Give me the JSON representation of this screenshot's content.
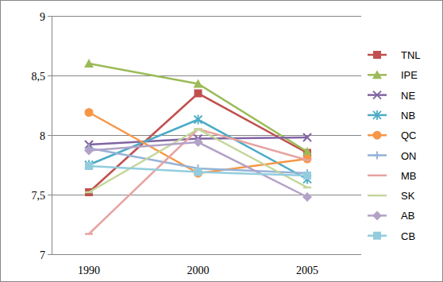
{
  "chart_data": {
    "type": "line",
    "categories": [
      "1990",
      "2000",
      "2005"
    ],
    "ylim": [
      7,
      9
    ],
    "yticks": [
      7,
      {
        "value": 7.5,
        "label": "7,5"
      },
      8,
      {
        "value": 8.5,
        "label": "8,5"
      },
      9
    ],
    "grid": true,
    "legend": "right",
    "series": [
      {
        "name": "TNL",
        "color": "#c0504d",
        "marker": "square",
        "values": [
          7.52,
          8.35,
          7.85
        ]
      },
      {
        "name": "IPE",
        "color": "#9bbb59",
        "marker": "triangle",
        "values": [
          8.6,
          8.43,
          7.86
        ]
      },
      {
        "name": "NE",
        "color": "#8064a2",
        "marker": "x",
        "values": [
          7.92,
          7.97,
          7.98
        ]
      },
      {
        "name": "NB",
        "color": "#4bacc6",
        "marker": "asterisk",
        "values": [
          7.75,
          8.13,
          7.63
        ]
      },
      {
        "name": "QC",
        "color": "#f79646",
        "marker": "circle",
        "values": [
          8.19,
          7.68,
          7.8
        ]
      },
      {
        "name": "ON",
        "color": "#95b3d7",
        "marker": "plus",
        "values": [
          7.89,
          7.72,
          7.68
        ]
      },
      {
        "name": "MB",
        "color": "#e6a3a1",
        "marker": "dash",
        "values": [
          7.17,
          8.05,
          7.79
        ]
      },
      {
        "name": "SK",
        "color": "#c3d69b",
        "marker": "dash",
        "values": [
          7.52,
          8.05,
          7.56
        ]
      },
      {
        "name": "AB",
        "color": "#b3a2c7",
        "marker": "diamond",
        "values": [
          7.87,
          7.94,
          7.48
        ]
      },
      {
        "name": "CB",
        "color": "#93cddd",
        "marker": "square",
        "values": [
          7.74,
          7.69,
          7.66
        ]
      }
    ]
  }
}
